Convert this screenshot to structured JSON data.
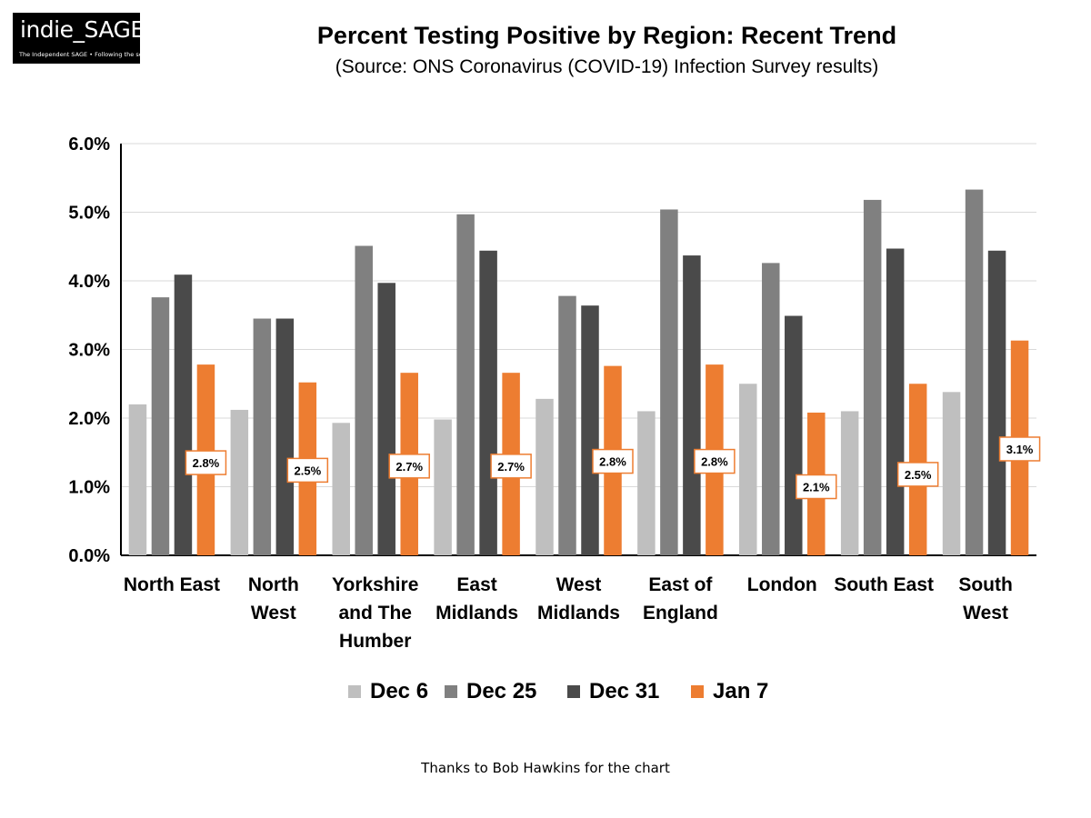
{
  "header": {
    "logo_name": "indie_SAGE",
    "logo_tagline": "The Independent SAGE • Following the science",
    "title": "Percent Testing Positive by Region: Recent Trend",
    "subtitle": "(Source: ONS Coronavirus (COVID-19) Infection Survey results)"
  },
  "footer": {
    "credit": "Thanks to Bob Hawkins for the chart"
  },
  "chart_data": {
    "type": "bar",
    "title": "Percent Testing Positive by Region: Recent Trend",
    "xlabel": "",
    "ylabel": "",
    "ylim": [
      0,
      6
    ],
    "yticks": [
      "0.0%",
      "1.0%",
      "2.0%",
      "3.0%",
      "4.0%",
      "5.0%",
      "6.0%"
    ],
    "grid": true,
    "legend_position": "bottom",
    "categories": [
      [
        "North East"
      ],
      [
        "North",
        "West"
      ],
      [
        "Yorkshire",
        "and The",
        "Humber"
      ],
      [
        "East",
        "Midlands"
      ],
      [
        "West",
        "Midlands"
      ],
      [
        "East of",
        "England"
      ],
      [
        "London"
      ],
      [
        "South East"
      ],
      [
        "South",
        "West"
      ]
    ],
    "series": [
      {
        "name": "Dec 6",
        "color": "#bfbfbf",
        "values": [
          2.2,
          2.12,
          1.93,
          1.98,
          2.28,
          2.1,
          2.5,
          2.1,
          2.38
        ]
      },
      {
        "name": "Dec 25",
        "color": "#808080",
        "values": [
          3.76,
          3.45,
          4.51,
          4.97,
          3.78,
          5.04,
          4.26,
          5.18,
          5.33
        ]
      },
      {
        "name": "Dec 31",
        "color": "#4a4a4a",
        "values": [
          4.09,
          3.45,
          3.97,
          4.44,
          3.64,
          4.37,
          3.49,
          4.47,
          4.44
        ]
      },
      {
        "name": "Jan 7",
        "color": "#ed7d31",
        "values": [
          2.78,
          2.52,
          2.66,
          2.66,
          2.76,
          2.78,
          2.08,
          2.5,
          3.13
        ]
      }
    ],
    "data_labels": [
      "2.8%",
      "2.5%",
      "2.7%",
      "2.7%",
      "2.8%",
      "2.8%",
      "2.1%",
      "2.5%",
      "3.1%"
    ],
    "data_label_levels": [
      1.35,
      1.24,
      1.3,
      1.3,
      1.37,
      1.37,
      1.0,
      1.18,
      1.55
    ]
  }
}
